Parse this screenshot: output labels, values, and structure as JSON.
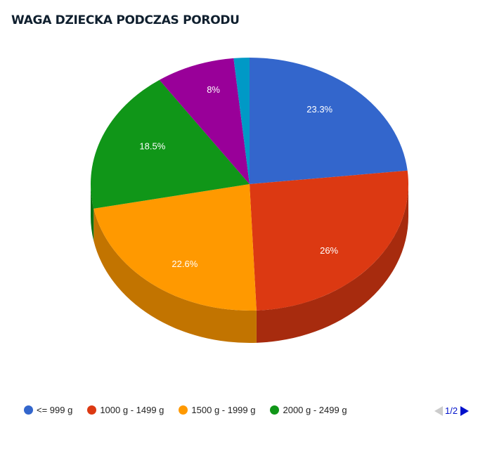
{
  "chart_data": {
    "type": "pie",
    "title": "WAGA DZIECKA PODCZAS PORODU",
    "slices": [
      {
        "label": "<= 999 g",
        "value": 23.3,
        "display": "23.3%",
        "color": "#3366cc"
      },
      {
        "label": "1000 g - 1499 g",
        "value": 26,
        "display": "26%",
        "color": "#dc3912"
      },
      {
        "label": "1500 g - 1999 g",
        "value": 22.6,
        "display": "22.6%",
        "color": "#ff9900"
      },
      {
        "label": "2000 g - 2499 g",
        "value": 18.5,
        "display": "18.5%",
        "color": "#109618"
      },
      {
        "label": "",
        "value": 8,
        "display": "8%",
        "color": "#990099"
      },
      {
        "label": "",
        "value": 1.6,
        "display": "",
        "color": "#0099c6"
      }
    ],
    "legend_position": "bottom",
    "three_d": true
  },
  "legend": {
    "items": [
      {
        "label": "<= 999 g",
        "color": "#3366cc"
      },
      {
        "label": "1000 g - 1499 g",
        "color": "#dc3912"
      },
      {
        "label": "1500 g - 1999 g",
        "color": "#ff9900"
      },
      {
        "label": "2000 g - 2499 g",
        "color": "#109618"
      }
    ],
    "page_text": "1/2"
  }
}
